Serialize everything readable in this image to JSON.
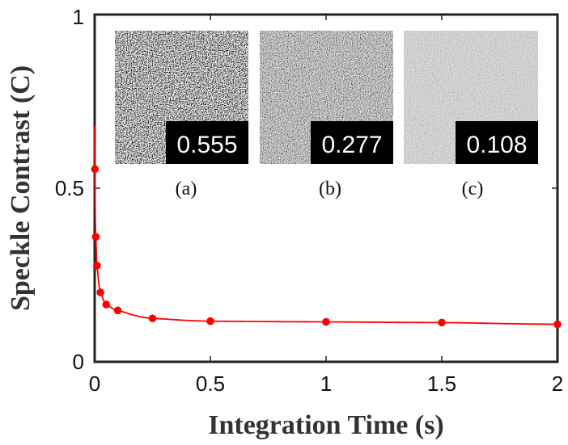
{
  "chart_data": {
    "type": "scatter",
    "xlabel": "Integration Time (s)",
    "ylabel": "Speckle Contrast (C)",
    "xlim": [
      0,
      2
    ],
    "ylim": [
      0,
      1
    ],
    "x_ticks": [
      "0",
      "0.5",
      "1",
      "1.5",
      "2"
    ],
    "y_ticks": [
      "0",
      "0.5",
      "1"
    ],
    "grid": false,
    "series": [
      {
        "kind": "points",
        "color": "#ff0000",
        "x": [
          0.001,
          0.005,
          0.01,
          0.025,
          0.05,
          0.1,
          0.25,
          0.5,
          1.0,
          1.5,
          2.0
        ],
        "y": [
          0.555,
          0.36,
          0.277,
          0.2,
          0.165,
          0.148,
          0.125,
          0.117,
          0.115,
          0.113,
          0.108
        ]
      },
      {
        "kind": "fit-line",
        "color": "#ff0000"
      }
    ],
    "insets": [
      {
        "caption": "(a)",
        "value": "0.555",
        "tone": "high-contrast"
      },
      {
        "caption": "(b)",
        "value": "0.277",
        "tone": "medium-contrast"
      },
      {
        "caption": "(c)",
        "value": "0.108",
        "tone": "low-contrast"
      }
    ]
  }
}
